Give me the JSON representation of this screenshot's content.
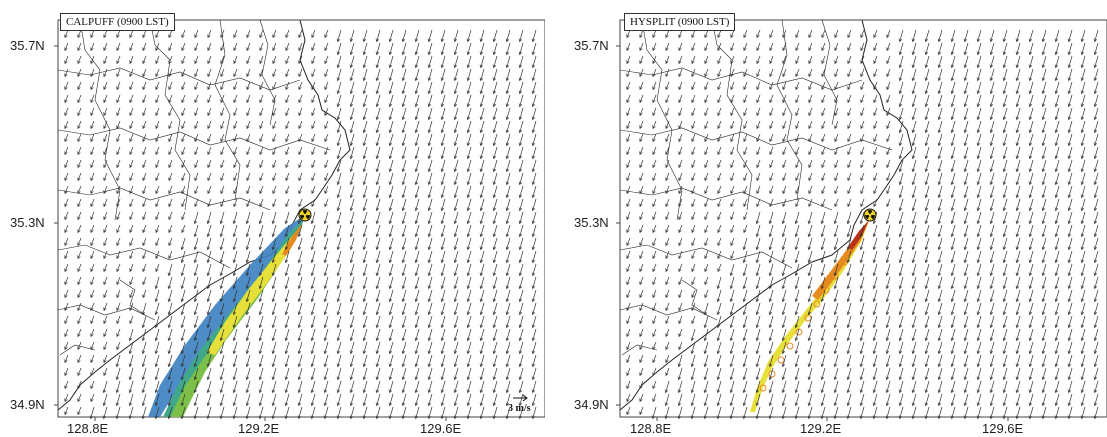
{
  "panels": [
    {
      "title": "CALPUFF (0900 LST)",
      "model": "CALPUFF"
    },
    {
      "title": "HYSPLIT (0900 LST)",
      "model": "HYSPLIT"
    }
  ],
  "y_axis": {
    "ticks": [
      "35.7N",
      "35.3N",
      "34.9N"
    ]
  },
  "x_axis": {
    "ticks": [
      "128.8E",
      "129.2E",
      "129.6E"
    ]
  },
  "vector_scale": {
    "label": "3 m/s"
  },
  "colors": {
    "plume_blue": "#3a7fc1",
    "plume_teal": "#3fa88a",
    "plume_green": "#7cc04a",
    "plume_yellow": "#e8e03a",
    "plume_orange": "#e58a1f",
    "plume_red": "#b8321a",
    "arrows": "#333333",
    "coastline": "#222222"
  },
  "source_marker": {
    "icon": "radiation-icon"
  }
}
